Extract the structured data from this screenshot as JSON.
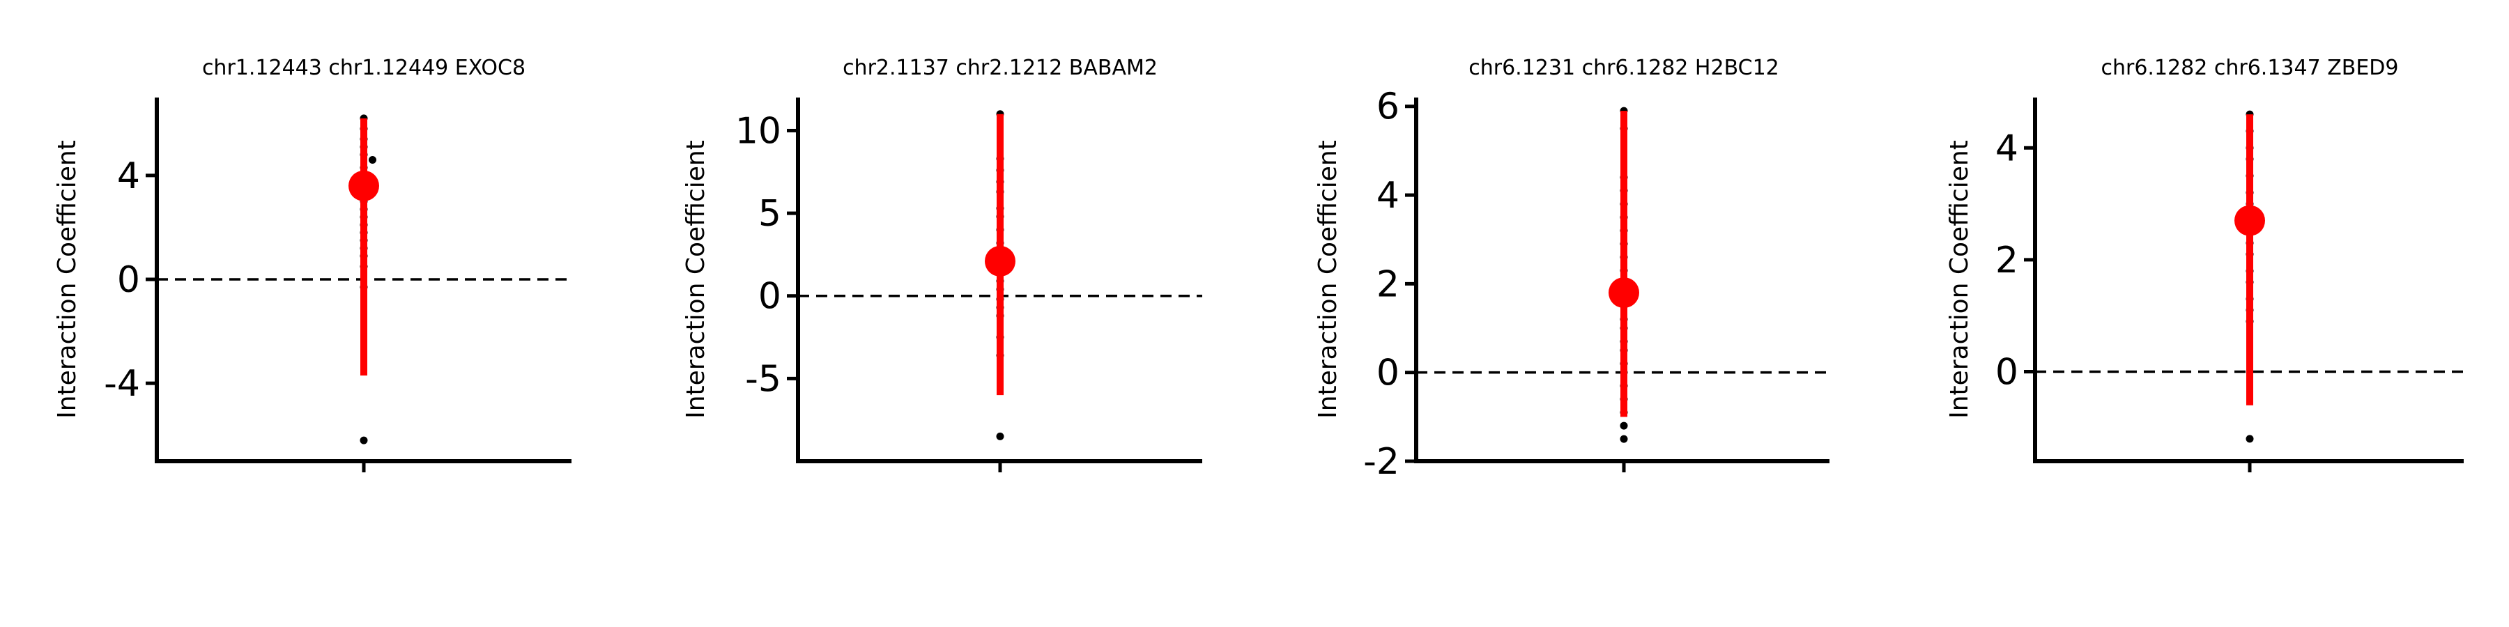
{
  "chart_data": [
    {
      "type": "scatter",
      "title": "chr1.12443 chr1.12449 EXOC8",
      "ylabel": "Interaction Coefficient",
      "xlabel": "",
      "yticks": [
        4,
        0,
        -4
      ],
      "ytick_labels": [
        "4",
        "0",
        "-4"
      ],
      "ylim": [
        -7,
        7
      ],
      "reference_line": 0,
      "point_estimate": 3.6,
      "interval": [
        -3.7,
        6.2
      ],
      "samples": [
        6.2,
        5.8,
        5.4,
        5.1,
        4.8,
        4.6,
        4.3,
        4.0,
        3.8,
        3.6,
        3.3,
        3.0,
        2.7,
        2.4,
        2.1,
        1.8,
        1.5,
        1.2,
        0.9,
        0.5,
        -0.3,
        -6.2
      ]
    },
    {
      "type": "scatter",
      "title": "chr2.1137 chr2.1212 BABAM2",
      "ylabel": "Interaction Coefficient",
      "xlabel": "",
      "yticks": [
        10,
        5,
        0,
        -5
      ],
      "ytick_labels": [
        "10",
        "5",
        "0",
        "-5"
      ],
      "ylim": [
        -10,
        12
      ],
      "reference_line": 0,
      "point_estimate": 2.1,
      "interval": [
        -6.0,
        11.0
      ],
      "samples": [
        11.0,
        8.3,
        7.6,
        6.9,
        6.3,
        5.3,
        4.8,
        4.0,
        3.2,
        2.5,
        1.7,
        0.9,
        0.4,
        -0.2,
        -0.7,
        -1.2,
        -2.5,
        -3.6,
        -8.5
      ]
    },
    {
      "type": "scatter",
      "title": "chr6.1231 chr6.1282 H2BC12",
      "ylabel": "Interaction Coefficient",
      "xlabel": "",
      "yticks": [
        6,
        4,
        2,
        0,
        -2
      ],
      "ytick_labels": [
        "6",
        "4",
        "2",
        "0",
        "-2"
      ],
      "ylim": [
        -2,
        6.2
      ],
      "reference_line": 0,
      "point_estimate": 1.8,
      "interval": [
        -1.0,
        5.9
      ],
      "samples": [
        5.9,
        5.5,
        4.4,
        4.1,
        3.8,
        3.5,
        3.2,
        2.9,
        2.6,
        2.3,
        2.1,
        1.8,
        1.5,
        1.2,
        1.0,
        0.7,
        0.5,
        0.2,
        0.0,
        -0.3,
        -0.6,
        -0.9,
        -1.2,
        -1.5
      ]
    },
    {
      "type": "scatter",
      "title": "chr6.1282 chr6.1347 ZBED9",
      "ylabel": "Interaction Coefficient",
      "xlabel": "",
      "yticks": [
        4,
        2,
        0
      ],
      "ytick_labels": [
        "4",
        "2",
        "0"
      ],
      "ylim": [
        -1.6,
        4.9
      ],
      "reference_line": 0,
      "point_estimate": 2.7,
      "interval": [
        -0.6,
        4.6
      ],
      "samples": [
        4.6,
        4.3,
        4.0,
        3.8,
        3.5,
        3.2,
        3.0,
        2.8,
        2.6,
        2.3,
        2.1,
        1.8,
        1.6,
        1.3,
        1.1,
        0.9,
        -1.2
      ]
    }
  ]
}
